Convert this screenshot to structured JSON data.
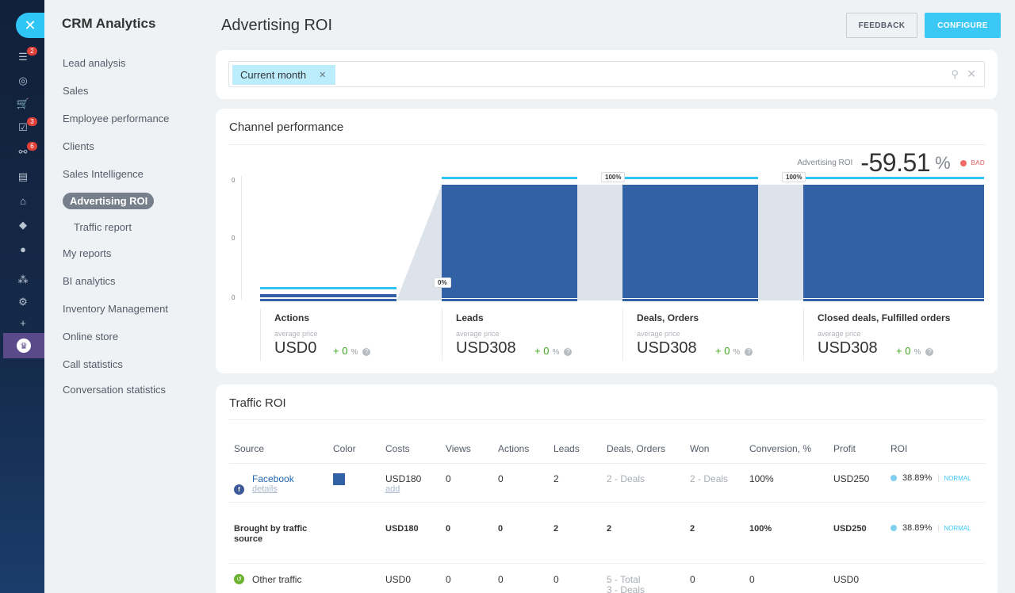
{
  "rail": {
    "badges": [
      "2",
      "3",
      "6"
    ]
  },
  "menu": {
    "title": "CRM Analytics",
    "items": [
      {
        "label": "Lead analysis"
      },
      {
        "label": "Sales"
      },
      {
        "label": "Employee performance"
      },
      {
        "label": "Clients"
      },
      {
        "label": "Sales Intelligence"
      },
      {
        "label": "Advertising ROI"
      },
      {
        "label": "Traffic report"
      },
      {
        "label": "My reports"
      },
      {
        "label": "BI analytics"
      },
      {
        "label": "Inventory Management"
      },
      {
        "label": "Online store"
      },
      {
        "label": "Call statistics"
      },
      {
        "label": "Conversation statistics"
      }
    ]
  },
  "header": {
    "title": "Advertising ROI",
    "feedback_label": "FEEDBACK",
    "configure_label": "CONFIGURE"
  },
  "filter": {
    "chip_label": "Current month"
  },
  "channel": {
    "title": "Channel performance",
    "roi_label": "Advertising ROI",
    "roi_value": "-59.51",
    "roi_unit": "%",
    "roi_status": "BAD",
    "y_ticks": [
      "0",
      "0",
      "0"
    ],
    "conversion_badges": [
      "0%",
      "100%",
      "100%"
    ],
    "stages": [
      {
        "name": "Actions",
        "sub": "average price",
        "price": "USD0",
        "delta": "+ 0",
        "delta_unit": "%"
      },
      {
        "name": "Leads",
        "sub": "average price",
        "price": "USD308",
        "delta": "+ 0",
        "delta_unit": "%"
      },
      {
        "name": "Deals, Orders",
        "sub": "average price",
        "price": "USD308",
        "delta": "+ 0",
        "delta_unit": "%"
      },
      {
        "name": "Closed deals, Fulfilled orders",
        "sub": "average price",
        "price": "USD308",
        "delta": "+ 0",
        "delta_unit": "%"
      }
    ],
    "bar_color": "#3361a6",
    "top_line_color": "#2fc6f6"
  },
  "traffic": {
    "title": "Traffic ROI",
    "columns": [
      "Source",
      "Color",
      "Costs",
      "Views",
      "Actions",
      "Leads",
      "Deals, Orders",
      "Won",
      "Conversion, %",
      "Profit",
      "ROI"
    ],
    "rows": {
      "facebook": {
        "source": "Facebook",
        "details": "details",
        "color": "#3361a6",
        "costs": "USD180",
        "costs_add": "add",
        "views": "0",
        "actions": "0",
        "leads": "2",
        "deals": "2",
        "deals_suffix": "- Deals",
        "won": "2",
        "won_suffix": "- Deals",
        "conversion": "100%",
        "profit": "USD250",
        "roi": "38.89%",
        "roi_tag": "NORMAL"
      },
      "brought": {
        "source": "Brought by traffic source",
        "costs": "USD180",
        "views": "0",
        "actions": "0",
        "leads": "2",
        "deals": "2",
        "won": "2",
        "conversion": "100%",
        "profit": "USD250",
        "roi": "38.89%",
        "roi_tag": "NORMAL"
      },
      "other": {
        "source": "Other traffic",
        "costs": "USD0",
        "views": "0",
        "actions": "0",
        "leads": "0",
        "deals": "5",
        "deals_suffix": "- Total",
        "deals_line2": "3 - Deals",
        "won": "0",
        "conversion": "0",
        "profit": "USD0"
      }
    }
  }
}
